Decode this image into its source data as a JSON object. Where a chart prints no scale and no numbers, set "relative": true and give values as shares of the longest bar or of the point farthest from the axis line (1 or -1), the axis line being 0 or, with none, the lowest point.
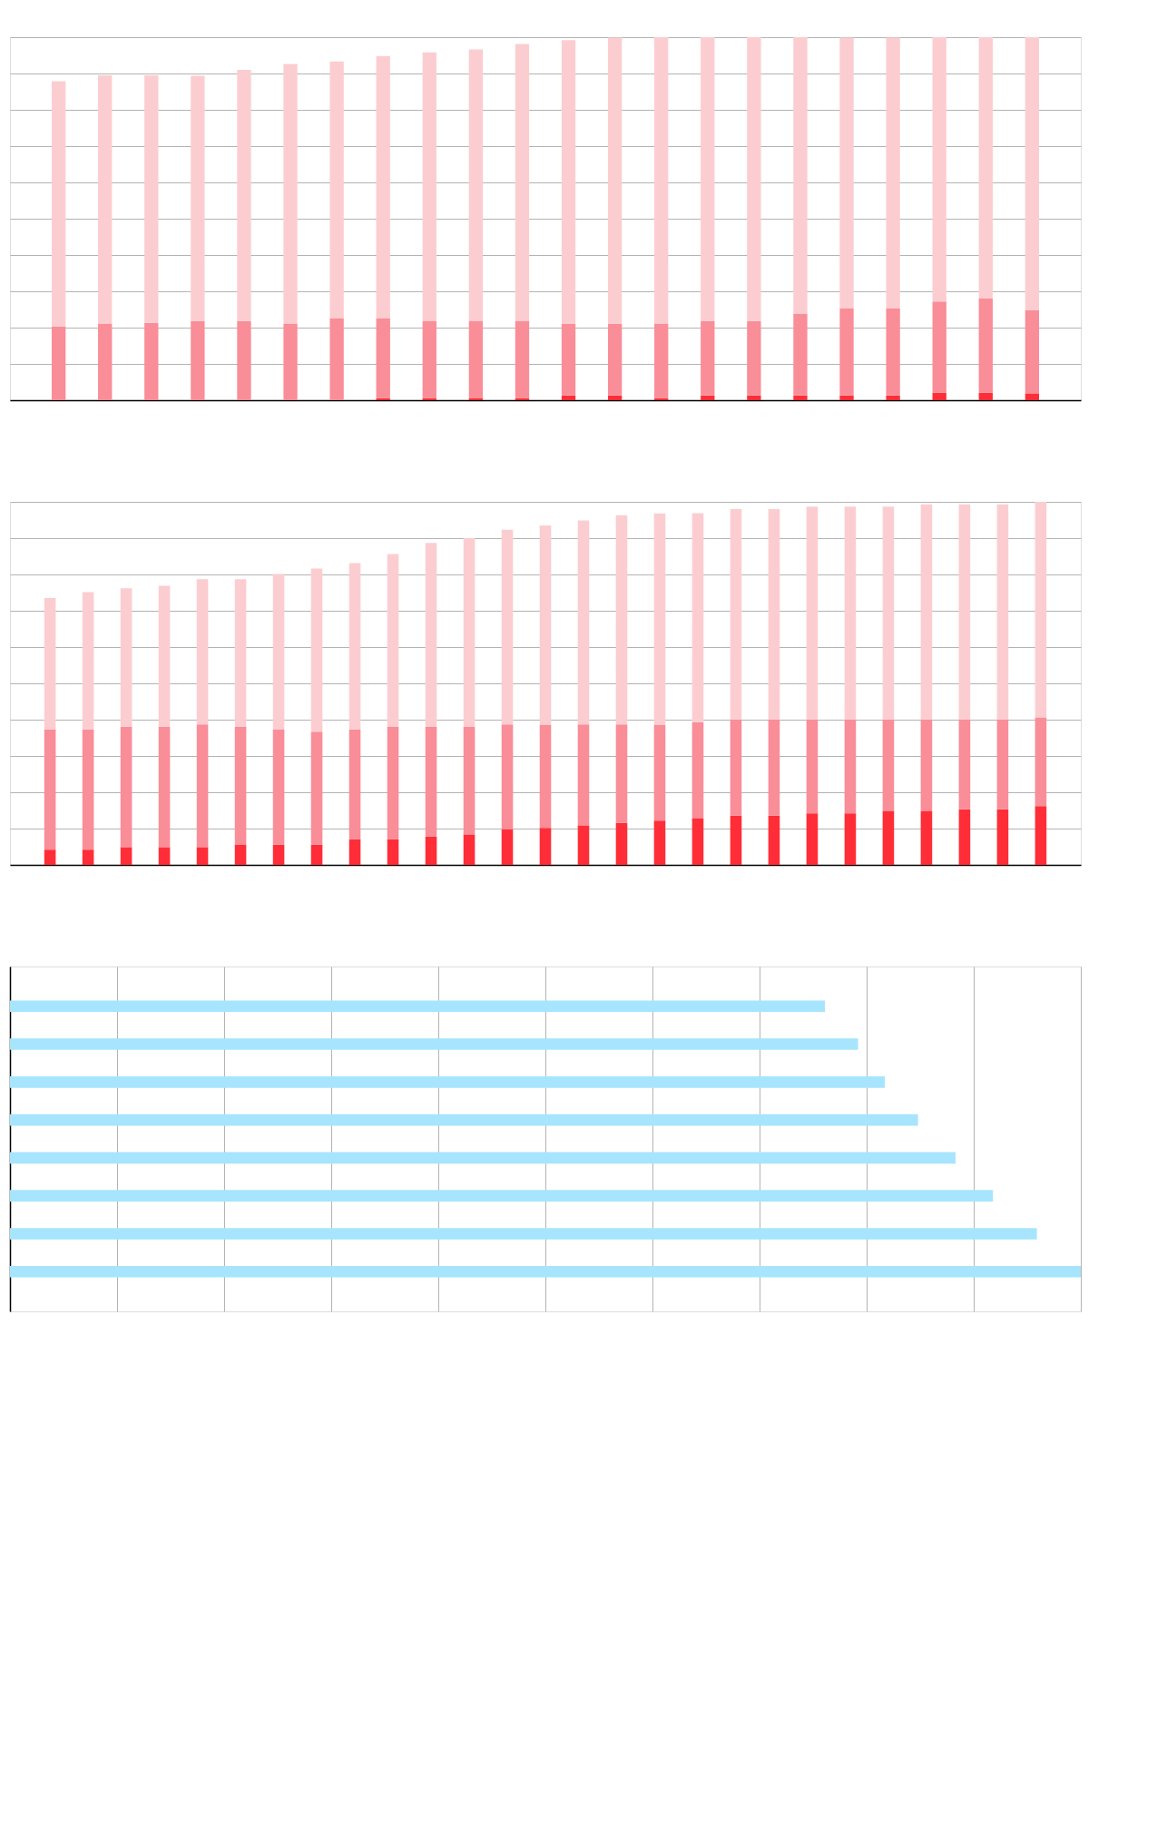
{
  "chart_data": [
    {
      "type": "bar",
      "relative": true,
      "stacked": true,
      "grid": "y",
      "tick_labels": false,
      "categories": [
        null,
        null,
        null,
        null,
        null,
        null,
        null,
        null,
        null,
        null,
        null,
        null,
        null,
        null,
        null,
        null,
        null,
        null,
        null,
        null,
        null,
        null
      ],
      "series": [
        {
          "color": "#ff2d37",
          "values": [
            0,
            0,
            0,
            0,
            0,
            0,
            0,
            0.006,
            0.006,
            0.006,
            0.006,
            0.013,
            0.013,
            0.006,
            0.013,
            0.013,
            0.013,
            0.013,
            0.013,
            0.021,
            0.021,
            0.019
          ]
        },
        {
          "color": "#f98d98",
          "values": [
            0.203,
            0.211,
            0.213,
            0.218,
            0.218,
            0.211,
            0.226,
            0.22,
            0.213,
            0.213,
            0.213,
            0.197,
            0.197,
            0.205,
            0.205,
            0.205,
            0.226,
            0.241,
            0.241,
            0.251,
            0.259,
            0.23
          ]
        },
        {
          "color": "#fccdd0",
          "values": [
            0.676,
            0.684,
            0.682,
            0.676,
            0.692,
            0.715,
            0.707,
            0.722,
            0.739,
            0.747,
            0.762,
            0.782,
            0.789,
            0.789,
            0.782,
            0.782,
            0.761,
            0.745,
            0.745,
            0.728,
            0.72,
            0.751
          ]
        }
      ]
    },
    {
      "type": "bar",
      "relative": true,
      "stacked": true,
      "grid": "y",
      "tick_labels": false,
      "categories": [
        null,
        null,
        null,
        null,
        null,
        null,
        null,
        null,
        null,
        null,
        null,
        null,
        null,
        null,
        null,
        null,
        null,
        null,
        null,
        null,
        null,
        null,
        null,
        null,
        null,
        null,
        null
      ],
      "series": [
        {
          "color": "#ff2d37",
          "values": [
            0.042,
            0.042,
            0.049,
            0.049,
            0.049,
            0.056,
            0.056,
            0.056,
            0.071,
            0.071,
            0.078,
            0.084,
            0.098,
            0.102,
            0.109,
            0.116,
            0.122,
            0.129,
            0.136,
            0.136,
            0.142,
            0.142,
            0.149,
            0.149,
            0.153,
            0.153,
            0.162
          ]
        },
        {
          "color": "#f98d98",
          "values": [
            0.331,
            0.331,
            0.331,
            0.331,
            0.338,
            0.324,
            0.318,
            0.311,
            0.302,
            0.309,
            0.302,
            0.296,
            0.289,
            0.284,
            0.278,
            0.271,
            0.264,
            0.264,
            0.264,
            0.264,
            0.258,
            0.258,
            0.251,
            0.251,
            0.247,
            0.247,
            0.244
          ]
        },
        {
          "color": "#fccdd0",
          "values": [
            0.362,
            0.378,
            0.382,
            0.389,
            0.4,
            0.407,
            0.427,
            0.449,
            0.458,
            0.476,
            0.507,
            0.52,
            0.536,
            0.549,
            0.562,
            0.576,
            0.582,
            0.576,
            0.58,
            0.58,
            0.587,
            0.587,
            0.587,
            0.593,
            0.593,
            0.593,
            0.594
          ]
        }
      ]
    },
    {
      "type": "bar",
      "relative": true,
      "orientation": "horizontal",
      "grid": "x",
      "tick_labels": false,
      "categories": [
        null,
        null,
        null,
        null,
        null,
        null,
        null,
        null
      ],
      "color": "#a6e5fd",
      "values": [
        0.761,
        0.792,
        0.817,
        0.848,
        0.883,
        0.918,
        0.959,
        1
      ]
    }
  ]
}
